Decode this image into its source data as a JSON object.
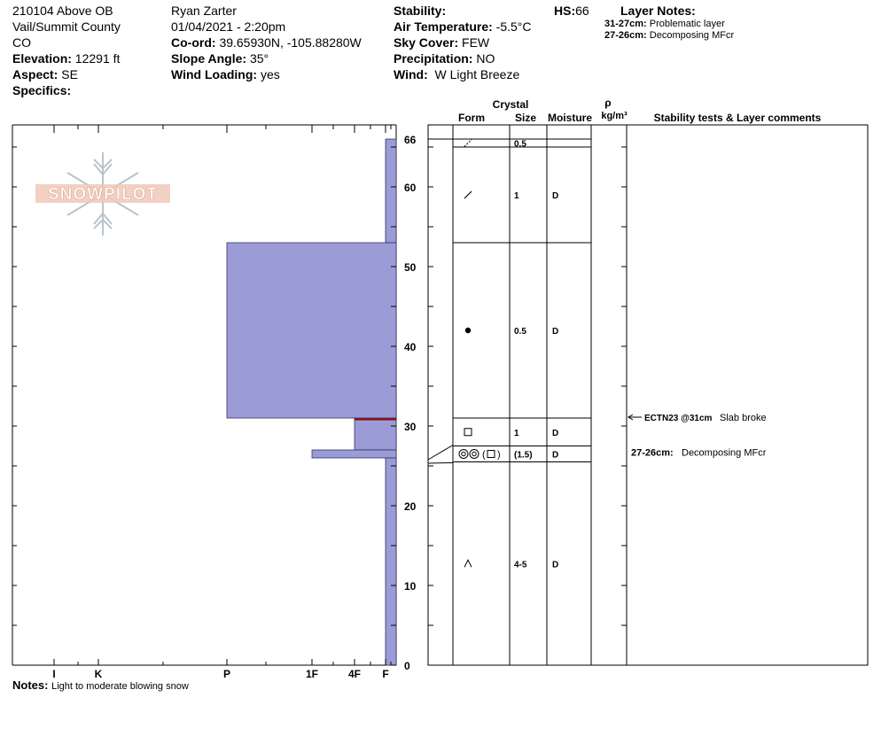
{
  "header": {
    "col1": {
      "line1": "210104 Above OB",
      "line2": "Vail/Summit County",
      "line3": "CO",
      "elevation_label": "Elevation:",
      "elevation_value": "12291 ft",
      "aspect_label": "Aspect:",
      "aspect_value": "SE",
      "specifics_label": "Specifics:"
    },
    "col2": {
      "observer": "Ryan Zarter",
      "datetime": "01/04/2021 - 2:20pm",
      "coord_label": "Co-ord:",
      "coord_value": "39.65930N, -105.88280W",
      "slope_label": "Slope Angle:",
      "slope_value": "35°",
      "wind_loading_label": "Wind Loading:",
      "wind_loading_value": "yes"
    },
    "col3": {
      "stability_label": "Stability:",
      "stability_value": "",
      "air_temp_label": "Air Temperature:",
      "air_temp_value": "-5.5°C",
      "sky_label": "Sky Cover:",
      "sky_value": "FEW",
      "precip_label": "Precipitation:",
      "precip_value": "NO",
      "wind_label": "Wind:",
      "wind_value": "W Light Breeze"
    },
    "hs_label": "HS:",
    "hs_value": "66",
    "layer_notes": {
      "title": "Layer Notes:",
      "items": [
        {
          "range": "31-27cm:",
          "text": "Problematic layer"
        },
        {
          "range": "27-26cm:",
          "text": "Decomposing MFcr"
        }
      ]
    }
  },
  "logo_text": "SNOWPILOT",
  "table_headers": {
    "crystal": "Crystal",
    "form": "Form",
    "size": "Size",
    "moisture": "Moisture",
    "rho": "ρ",
    "density_unit": "kg/m³",
    "comments": "Stability tests & Layer comments"
  },
  "notes_label": "Notes:",
  "notes_text": "Light to moderate blowing snow",
  "colors": {
    "layer_fill": "#9b9bd6",
    "layer_stroke": "#333366",
    "failure_line": "#990000",
    "grid": "#000000"
  },
  "chart_data": {
    "type": "snow_profile",
    "total_height_cm": 66,
    "y_axis": {
      "min": 0,
      "max": 66,
      "ticks": [
        0,
        10,
        20,
        30,
        40,
        50,
        60,
        66
      ]
    },
    "hardness_axis": {
      "labels": [
        "I",
        "K",
        "P",
        "1F",
        "4F",
        "F"
      ]
    },
    "hardness_level": {
      "F": 0,
      "4F": 1,
      "1F": 2,
      "P": 3,
      "K": 4,
      "I": 5
    },
    "layers": [
      {
        "top": 66,
        "bottom": 53,
        "hardness": "F",
        "form": "decomposing",
        "form_icon": "slash-dotted",
        "size": "0.5",
        "moisture": ""
      },
      {
        "top": 66,
        "bottom": 53,
        "hardness": "F",
        "form": "decomposing",
        "form_icon": "slash",
        "size": "1",
        "moisture": "D"
      },
      {
        "top": 53,
        "bottom": 31,
        "hardness": "P",
        "form": "rounded",
        "form_icon": "dot",
        "size": "0.5",
        "moisture": "D"
      },
      {
        "top": 31,
        "bottom": 27,
        "hardness": "4F",
        "form": "faceted",
        "form_icon": "square",
        "size": "1",
        "moisture": "D"
      },
      {
        "top": 27,
        "bottom": 26,
        "hardness": "1F",
        "form": "melt-freeze crust",
        "form_icon": "melt-forms",
        "form_text": "◎◎ (□)",
        "size": "(1.5)",
        "moisture": "D"
      },
      {
        "top": 26,
        "bottom": 0,
        "hardness": "F",
        "form": "depth hoar",
        "form_icon": "caret",
        "size": "4-5",
        "moisture": "D"
      }
    ],
    "grid_rows": [
      {
        "top": 66,
        "bottom": 65,
        "form_icon": "slash-dotted",
        "size": "0.5",
        "moisture": ""
      },
      {
        "top": 65,
        "bottom": 53,
        "form_icon": "slash",
        "size": "1",
        "moisture": "D"
      },
      {
        "top": 53,
        "bottom": 31,
        "form_icon": "dot",
        "size": "0.5",
        "moisture": "D"
      },
      {
        "top": 31,
        "bottom": 27.5,
        "form_icon": "square",
        "size": "1",
        "moisture": "D"
      },
      {
        "top": 27.5,
        "bottom": 25.5,
        "form_icon": "melt-forms",
        "size": "(1.5)",
        "moisture": "D"
      },
      {
        "top": 25.5,
        "bottom": 0,
        "form_icon": "caret",
        "size": "4-5",
        "moisture": "D"
      }
    ],
    "failure_depth_cm": 31,
    "stability_tests": [
      {
        "depth": 31,
        "label": "ECTN23 @31cm",
        "comment": "Slab broke"
      }
    ],
    "layer_comments": [
      {
        "depth": 26.5,
        "range": "27-26cm:",
        "comment": "Decomposing MFcr"
      }
    ]
  }
}
